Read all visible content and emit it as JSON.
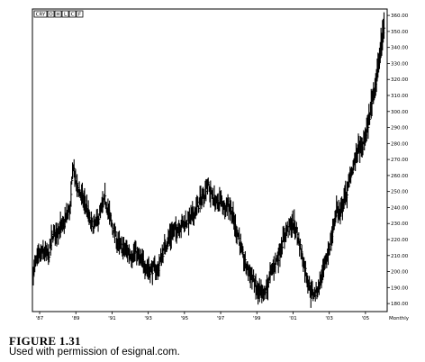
{
  "toolbar": {
    "buttons": [
      "CRY",
      "O",
      "H",
      "L",
      "C",
      "F"
    ]
  },
  "chart_data": {
    "type": "bar",
    "subtype": "ohlc-price-bars",
    "title": "",
    "xlabel": "",
    "ylabel": "",
    "x_axis": {
      "tick_labels": [
        "'87",
        "'89",
        "'91",
        "'93",
        "'95",
        "'97",
        "'99",
        "'01",
        "'03",
        "'05"
      ],
      "tick_years": [
        1987,
        1989,
        1991,
        1993,
        1995,
        1997,
        1999,
        2001,
        2003,
        2005
      ],
      "period_label": "Monthly",
      "range": [
        1986.6,
        2006.2
      ]
    },
    "y_axis": {
      "position": "right",
      "tick_labels": [
        "360.00",
        "350.00",
        "340.00",
        "330.00",
        "320.00",
        "310.00",
        "300.00",
        "290.00",
        "280.00",
        "270.00",
        "260.00",
        "250.00",
        "240.00",
        "230.00",
        "220.00",
        "210.00",
        "200.00",
        "190.00",
        "180.00"
      ],
      "ticks": [
        360,
        350,
        340,
        330,
        320,
        310,
        300,
        290,
        280,
        270,
        260,
        250,
        240,
        230,
        220,
        210,
        200,
        190,
        180
      ],
      "ylim": [
        175,
        364
      ]
    },
    "grid": false,
    "legend": "none",
    "series": [
      {
        "close_path": [
          [
            1986.65,
            200
          ],
          [
            1986.8,
            206
          ],
          [
            1987.0,
            210
          ],
          [
            1987.2,
            212
          ],
          [
            1987.5,
            210
          ],
          [
            1987.7,
            222
          ],
          [
            1988.0,
            226
          ],
          [
            1988.3,
            228
          ],
          [
            1988.5,
            235
          ],
          [
            1988.7,
            240
          ],
          [
            1988.85,
            268
          ],
          [
            1989.0,
            255
          ],
          [
            1989.2,
            250
          ],
          [
            1989.4,
            245
          ],
          [
            1989.6,
            240
          ],
          [
            1989.8,
            230
          ],
          [
            1990.0,
            228
          ],
          [
            1990.2,
            232
          ],
          [
            1990.4,
            238
          ],
          [
            1990.6,
            245
          ],
          [
            1990.75,
            240
          ],
          [
            1990.9,
            233
          ],
          [
            1991.1,
            225
          ],
          [
            1991.3,
            218
          ],
          [
            1991.5,
            215
          ],
          [
            1991.7,
            214
          ],
          [
            1991.9,
            212
          ],
          [
            1992.1,
            210
          ],
          [
            1992.3,
            212
          ],
          [
            1992.5,
            208
          ],
          [
            1992.7,
            205
          ],
          [
            1992.9,
            203
          ],
          [
            1993.1,
            201
          ],
          [
            1993.3,
            202
          ],
          [
            1993.5,
            200
          ],
          [
            1993.7,
            208
          ],
          [
            1993.9,
            215
          ],
          [
            1994.1,
            220
          ],
          [
            1994.3,
            224
          ],
          [
            1994.5,
            226
          ],
          [
            1994.7,
            228
          ],
          [
            1994.9,
            230
          ],
          [
            1995.1,
            231
          ],
          [
            1995.3,
            233
          ],
          [
            1995.5,
            236
          ],
          [
            1995.7,
            240
          ],
          [
            1995.9,
            245
          ],
          [
            1996.1,
            248
          ],
          [
            1996.25,
            256
          ],
          [
            1996.4,
            250
          ],
          [
            1996.6,
            246
          ],
          [
            1996.8,
            242
          ],
          [
            1997.0,
            245
          ],
          [
            1997.2,
            240
          ],
          [
            1997.4,
            243
          ],
          [
            1997.6,
            238
          ],
          [
            1997.8,
            228
          ],
          [
            1998.0,
            222
          ],
          [
            1998.2,
            210
          ],
          [
            1998.4,
            203
          ],
          [
            1998.6,
            200
          ],
          [
            1998.8,
            195
          ],
          [
            1999.0,
            188
          ],
          [
            1999.2,
            186
          ],
          [
            1999.4,
            185
          ],
          [
            1999.6,
            192
          ],
          [
            1999.8,
            200
          ],
          [
            2000.0,
            205
          ],
          [
            2000.2,
            210
          ],
          [
            2000.4,
            218
          ],
          [
            2000.6,
            225
          ],
          [
            2000.8,
            228
          ],
          [
            2001.0,
            230
          ],
          [
            2001.2,
            225
          ],
          [
            2001.4,
            215
          ],
          [
            2001.6,
            205
          ],
          [
            2001.8,
            195
          ],
          [
            2002.0,
            187
          ],
          [
            2002.2,
            186
          ],
          [
            2002.4,
            190
          ],
          [
            2002.6,
            198
          ],
          [
            2002.8,
            205
          ],
          [
            2003.0,
            215
          ],
          [
            2003.2,
            225
          ],
          [
            2003.4,
            240
          ],
          [
            2003.6,
            235
          ],
          [
            2003.8,
            245
          ],
          [
            2004.0,
            250
          ],
          [
            2004.2,
            262
          ],
          [
            2004.4,
            268
          ],
          [
            2004.6,
            278
          ],
          [
            2004.8,
            276
          ],
          [
            2005.0,
            285
          ],
          [
            2005.2,
            295
          ],
          [
            2005.4,
            310
          ],
          [
            2005.6,
            320
          ],
          [
            2005.8,
            335
          ],
          [
            2005.95,
            348
          ],
          [
            2006.05,
            355
          ]
        ]
      }
    ]
  },
  "caption": {
    "figure_label": "FIGURE 1.31",
    "credit": "Used with permission of esignal.com."
  }
}
